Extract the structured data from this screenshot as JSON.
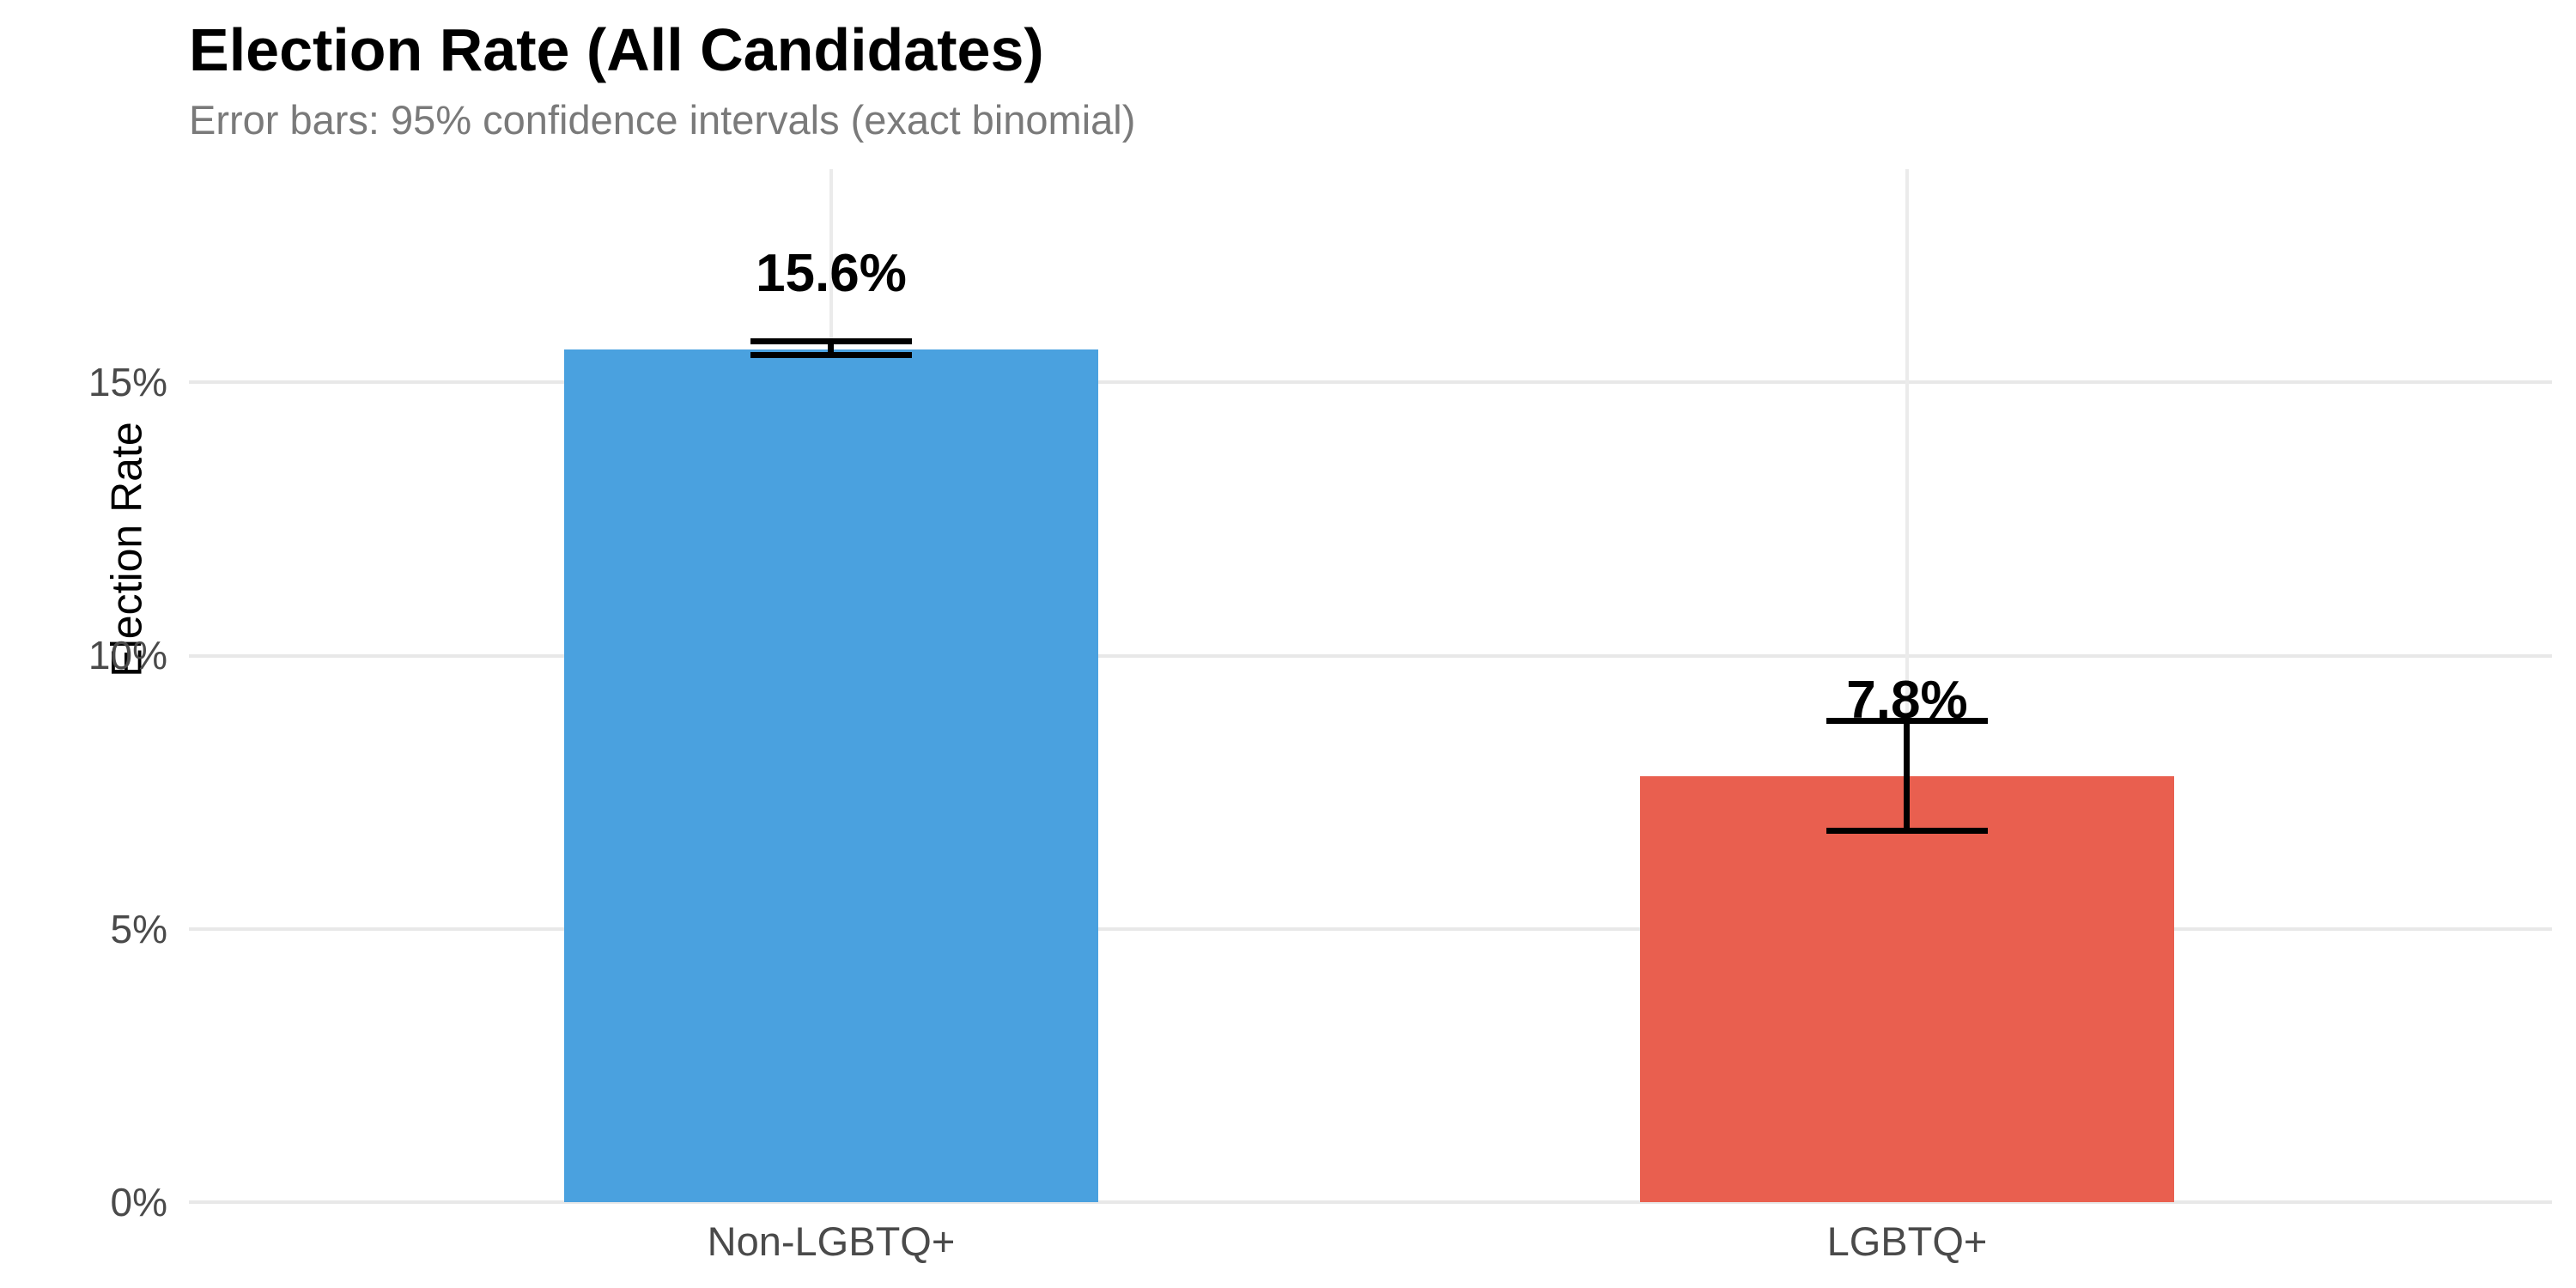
{
  "chart_data": {
    "type": "bar",
    "title": "Election Rate (All Candidates)",
    "subtitle": "Error bars: 95% confidence intervals (exact binomial)",
    "xlabel": "",
    "ylabel": "Election Rate",
    "categories": [
      "Non-LGBTQ+",
      "LGBTQ+"
    ],
    "values": [
      15.6,
      7.8
    ],
    "value_labels": [
      "15.6%",
      "7.8%"
    ],
    "series": [
      {
        "name": "Non-LGBTQ+",
        "value": 15.6,
        "label": "15.6%",
        "color": "#4AA1DF",
        "ci_low": 15.5,
        "ci_high": 15.75
      },
      {
        "name": "LGBTQ+",
        "value": 7.8,
        "label": "7.8%",
        "color": "#E95F4F",
        "ci_low": 6.8,
        "ci_high": 8.8
      }
    ],
    "error_bar_color": "#000000",
    "yticks": [
      {
        "value": 0,
        "label": "0%"
      },
      {
        "value": 5,
        "label": "5%"
      },
      {
        "value": 10,
        "label": "10%"
      },
      {
        "value": 15,
        "label": "15%"
      }
    ],
    "ylim": [
      0,
      18.9
    ],
    "grid": "horizontal gridlines at y ticks + vertical gridline at each category center",
    "legend": "none",
    "gridline_color": "#e8e8e8",
    "background_color": "#ffffff"
  }
}
